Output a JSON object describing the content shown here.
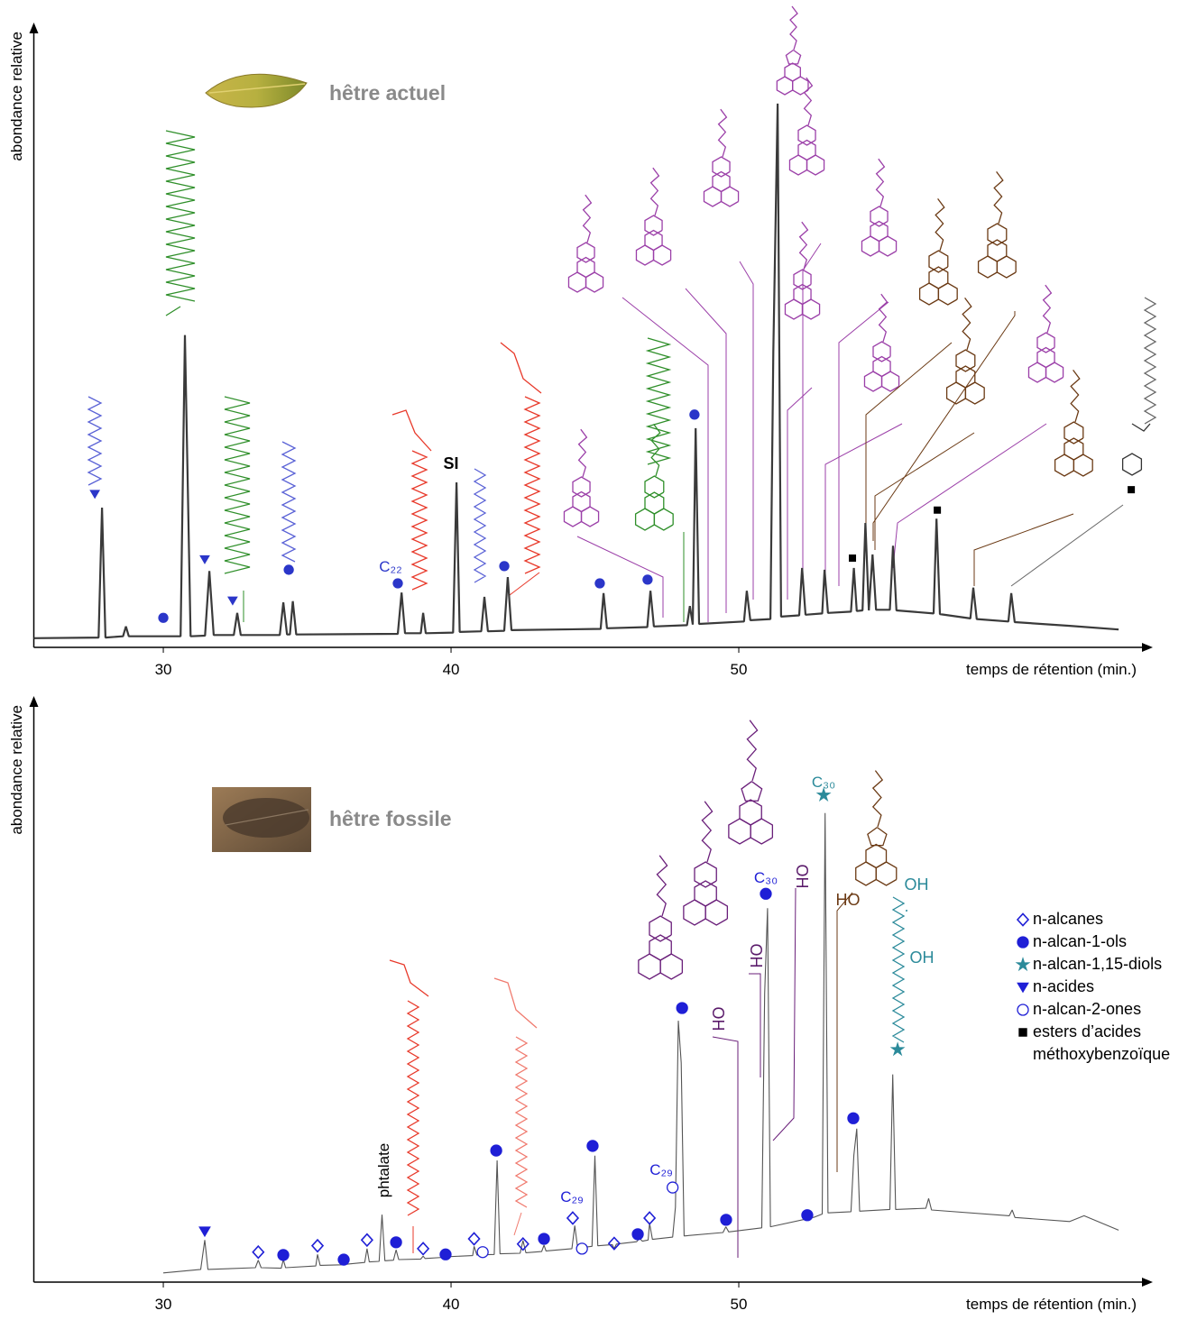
{
  "chart_data": [
    {
      "type": "line",
      "title": "hêtre actuel",
      "x_label": "temps de rétention (min.)",
      "y_label": "abondance relative",
      "xlim": [
        25.5,
        64
      ],
      "ylim": [
        0,
        100
      ],
      "xticks": [
        30,
        40,
        50
      ],
      "color": "#3a3a3a",
      "x": [
        25.5,
        27.75,
        27.87,
        27.99,
        28.6,
        28.7,
        28.8,
        30.6,
        30.75,
        30.85,
        30.95,
        31.45,
        31.6,
        31.75,
        32.45,
        32.57,
        32.69,
        34.05,
        34.17,
        34.3,
        34.4,
        34.5,
        34.62,
        38.15,
        38.28,
        38.4,
        38.95,
        39.03,
        39.12,
        40.07,
        40.19,
        40.3,
        41.05,
        41.16,
        41.28,
        41.85,
        41.97,
        42.1,
        45.2,
        45.3,
        45.42,
        46.82,
        46.93,
        47.05,
        48.2,
        48.3,
        48.4,
        48.5,
        48.62,
        50.18,
        50.28,
        50.4,
        51.1,
        51.2,
        51.35,
        51.47,
        52.1,
        52.2,
        52.32,
        52.9,
        52.98,
        53.1,
        53.9,
        54.0,
        54.1,
        54.3,
        54.4,
        54.52,
        54.65,
        54.77,
        55.25,
        55.36,
        55.48,
        56.77,
        56.87,
        56.99,
        58.05,
        58.15,
        58.27,
        59.37,
        59.47,
        59.59,
        61.5,
        63.2
      ],
      "values": [
        1.5,
        1.6,
        22.7,
        1.6,
        1.8,
        3.4,
        1.8,
        1.8,
        50.7,
        26,
        1.8,
        1.9,
        12.4,
        2.0,
        2.0,
        5.6,
        2.0,
        2.0,
        7.3,
        2.1,
        2.1,
        7.5,
        2.1,
        2.2,
        8.9,
        2.3,
        2.3,
        5.6,
        2.3,
        2.4,
        26.8,
        2.5,
        2.6,
        8.2,
        2.6,
        2.7,
        11.4,
        2.8,
        3.0,
        8.8,
        3.1,
        3.3,
        9.2,
        3.4,
        3.6,
        6.7,
        3.7,
        35.6,
        3.8,
        4.2,
        9.2,
        4.4,
        4.6,
        48,
        88.3,
        5.0,
        5.2,
        12.9,
        5.3,
        5.5,
        12.6,
        5.6,
        5.8,
        12.9,
        5.9,
        6.0,
        20.2,
        6.0,
        15.1,
        6.1,
        6.1,
        16.5,
        6.0,
        5.5,
        20.9,
        5.4,
        4.7,
        9.7,
        4.6,
        4.2,
        8.8,
        4.1,
        3.5,
        2.9
      ],
      "series": [
        {
          "symbol": "triangle",
          "color": "#2b36c9",
          "x": [
            27.62,
            31.44,
            32.41
          ],
          "values": [
            24.9,
            14.3,
            7.6
          ]
        },
        {
          "symbol": "circle",
          "color": "#2b36c9",
          "x": [
            30.0,
            34.36,
            38.15,
            41.85,
            45.17,
            46.83,
            48.46
          ],
          "values": [
            4.8,
            12.6,
            10.4,
            13.2,
            10.4,
            11,
            37.8
          ]
        },
        {
          "symbol": "square",
          "color": "#000000",
          "x": [
            53.95,
            56.9,
            63.64
          ],
          "values": [
            14.5,
            22.3,
            25.6
          ]
        }
      ],
      "annotations": [
        {
          "text": "C₂₂",
          "color": "#2b36c9"
        },
        {
          "text": "SI",
          "color": "#000000"
        }
      ]
    },
    {
      "type": "line",
      "title": "hêtre fossile",
      "x_label": "temps de rétention (min.)",
      "y_label": "abondance relative",
      "xlim": [
        25.5,
        64
      ],
      "ylim": [
        0,
        100
      ],
      "xticks": [
        30,
        40,
        50
      ],
      "color": "#555555",
      "x": [
        30.0,
        31.3,
        31.44,
        31.55,
        33.2,
        33.3,
        33.4,
        34.1,
        34.17,
        34.25,
        35.3,
        35.36,
        35.45,
        36.2,
        36.27,
        36.35,
        37.0,
        37.08,
        37.16,
        37.5,
        37.6,
        37.7,
        38.0,
        38.09,
        38.18,
        38.95,
        39.03,
        39.1,
        39.75,
        39.81,
        39.9,
        40.75,
        40.8,
        40.9,
        41.5,
        41.6,
        41.7,
        42.4,
        42.5,
        42.6,
        43.15,
        43.23,
        43.3,
        44.2,
        44.3,
        44.4,
        44.9,
        45.0,
        45.1,
        45.6,
        45.67,
        45.75,
        46.45,
        46.55,
        46.65,
        46.85,
        46.9,
        47.0,
        47.7,
        47.8,
        47.9,
        48.0,
        48.1,
        49.45,
        49.55,
        49.65,
        50.8,
        50.9,
        51.0,
        51.1,
        52.4,
        52.5,
        52.6,
        52.9,
        53.0,
        53.1,
        53.9,
        54.0,
        54.1,
        54.2,
        55.25,
        55.35,
        55.45,
        56.5,
        56.6,
        56.7,
        59.4,
        59.5,
        59.6,
        61.5,
        62.0,
        63.2
      ],
      "values": [
        1.6,
        2.2,
        7.3,
        2.2,
        2.5,
        3.8,
        2.5,
        2.4,
        3.9,
        2.5,
        2.8,
        4.8,
        2.9,
        3.0,
        3.6,
        3.1,
        3.4,
        5.8,
        3.5,
        3.6,
        11.7,
        3.7,
        3.8,
        5.6,
        3.9,
        4.0,
        4.5,
        4.1,
        4.3,
        3.9,
        4.4,
        4.6,
        6.2,
        4.7,
        4.8,
        21.1,
        4.9,
        5.0,
        7.2,
        5.1,
        5.3,
        6.4,
        5.4,
        5.8,
        9.8,
        5.9,
        6.2,
        21.9,
        6.3,
        6.5,
        5.8,
        6.6,
        7.0,
        7.6,
        7.1,
        7.3,
        10.2,
        7.4,
        7.8,
        13,
        45.3,
        38,
        8.0,
        8.6,
        9.6,
        8.7,
        9.4,
        50,
        64.8,
        9.6,
        11.0,
        11.3,
        11.2,
        11.8,
        81.3,
        12.0,
        12.2,
        22,
        26.6,
        12.3,
        12.6,
        36,
        12.6,
        12.8,
        14.5,
        12.5,
        11.5,
        12.5,
        11.2,
        10.5,
        11.5,
        9.0
      ],
      "series": [
        {
          "name": "n-alcanes",
          "symbol": "diamond",
          "color": "#1f1fd6",
          "x": [
            33.3,
            35.36,
            37.08,
            39.03,
            40.8,
            42.5,
            44.23,
            45.67,
            46.9
          ],
          "values": [
            5.2,
            6.3,
            7.3,
            5.8,
            7.5,
            6.6,
            11.1,
            6.7,
            11.1
          ]
        },
        {
          "name": "n-alcan-1-ols",
          "symbol": "circle",
          "color": "#1f1fd6",
          "x": [
            34.17,
            36.27,
            38.09,
            39.81,
            41.57,
            43.23,
            44.92,
            46.49,
            48.03,
            49.56,
            50.94,
            52.38,
            53.98
          ],
          "values": [
            4.7,
            3.9,
            6.9,
            4.8,
            22.8,
            7.5,
            23.6,
            8.3,
            47.5,
            10.8,
            67.3,
            11.6,
            28.4
          ]
        },
        {
          "name": "n-alcan-1,15-diols",
          "symbol": "star",
          "color": "#2b8a9a",
          "x": [
            52.95,
            55.52
          ],
          "values": [
            84.4,
            40.3
          ]
        },
        {
          "name": "n-acides",
          "symbol": "triangle",
          "color": "#1f1fd6",
          "x": [
            31.44
          ],
          "values": [
            8.8
          ]
        },
        {
          "name": "n-alcan-2-ones",
          "symbol": "ocircle",
          "color": "#1f1fd6",
          "x": [
            41.1,
            44.55,
            47.7
          ],
          "values": [
            5.2,
            5.8,
            16.4
          ]
        },
        {
          "name": "esters d’acides méthoxybenzoïque",
          "symbol": "square",
          "color": "#000000",
          "x": [],
          "values": []
        }
      ],
      "annotations": [
        {
          "text": "C₂₉",
          "color": "#1f1fd6"
        },
        {
          "text": "C₂₉",
          "color": "#1f1fd6"
        },
        {
          "text": "C₃₀",
          "color": "#1f1fd6"
        },
        {
          "text": "C₃₀",
          "color": "#2b8a9a"
        },
        {
          "text": "phtalate",
          "color": "#000000"
        },
        {
          "text": "OH",
          "color": "#2b8a9a"
        },
        {
          "text": "OH",
          "color": "#2b8a9a"
        },
        {
          "text": "HO",
          "color": "#6b3a14"
        },
        {
          "text": "OH",
          "color": "#5a1a6a"
        },
        {
          "text": "OH",
          "color": "#5a1a6a"
        },
        {
          "text": "OH",
          "color": "#5a1a6a"
        }
      ]
    }
  ]
}
